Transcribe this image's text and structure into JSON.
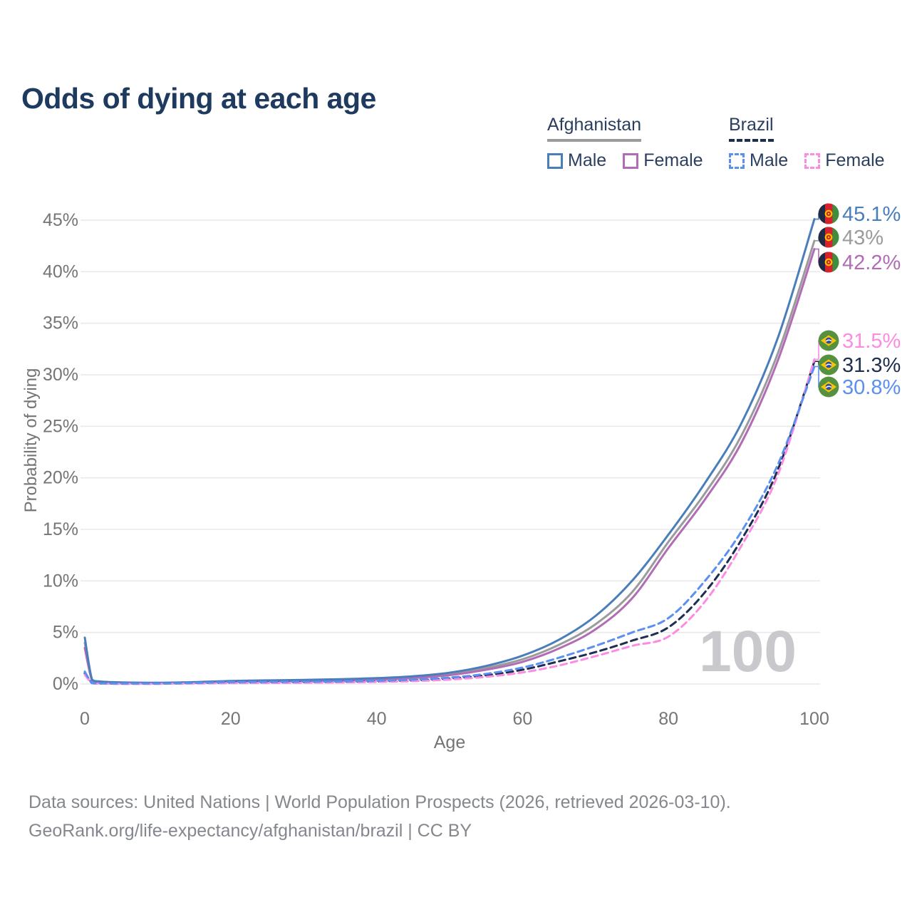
{
  "title": "Odds of dying at each age",
  "legend": {
    "groups": [
      {
        "label": "Afghanistan",
        "line_style": "solid",
        "underline_color": "#9b9b9b",
        "items": [
          {
            "label": "Male",
            "color": "#4a7ebb"
          },
          {
            "label": "Female",
            "color": "#b16cb5"
          }
        ]
      },
      {
        "label": "Brazil",
        "line_style": "dashed",
        "underline_color": "#1d2e4e",
        "items": [
          {
            "label": "Male",
            "color": "#5b8ff0"
          },
          {
            "label": "Female",
            "color": "#fc8ce2"
          }
        ]
      }
    ]
  },
  "watermark": "100",
  "chart_data": {
    "type": "line",
    "title": "Odds of dying at each age",
    "xlabel": "Age",
    "ylabel": "Probability of dying",
    "xlim": [
      0,
      100
    ],
    "ylim_percent": [
      0,
      47
    ],
    "x_ticks": [
      0,
      20,
      40,
      60,
      80,
      100
    ],
    "y_ticks_percent": [
      0,
      5,
      10,
      15,
      20,
      25,
      30,
      35,
      40,
      45
    ],
    "grid": "horizontal",
    "legend_position": "top-right",
    "x": [
      0,
      1,
      2,
      5,
      10,
      15,
      20,
      25,
      30,
      35,
      40,
      45,
      50,
      55,
      60,
      65,
      70,
      75,
      80,
      85,
      90,
      95,
      100
    ],
    "series": [
      {
        "name": "Afghanistan Both sexes",
        "country": "Afghanistan",
        "sex": "Both",
        "flag": "afghanistan",
        "color": "#9b9b9b",
        "dash": "solid",
        "end_label": "43%",
        "values": [
          4.0,
          0.38,
          0.22,
          0.13,
          0.1,
          0.15,
          0.25,
          0.3,
          0.34,
          0.4,
          0.5,
          0.66,
          0.97,
          1.55,
          2.4,
          3.8,
          5.8,
          8.9,
          13.8,
          18.5,
          24.1,
          32.1,
          43.0
        ]
      },
      {
        "name": "Afghanistan Female",
        "country": "Afghanistan",
        "sex": "Female",
        "flag": "afghanistan",
        "color": "#b16cb5",
        "dash": "solid",
        "end_label": "42.2%",
        "values": [
          3.5,
          0.34,
          0.2,
          0.12,
          0.09,
          0.13,
          0.21,
          0.25,
          0.29,
          0.34,
          0.43,
          0.58,
          0.86,
          1.38,
          2.15,
          3.45,
          5.3,
          8.3,
          13.2,
          17.9,
          23.4,
          31.4,
          42.2
        ]
      },
      {
        "name": "Afghanistan Male",
        "country": "Afghanistan",
        "sex": "Male",
        "flag": "afghanistan",
        "color": "#4a7ebb",
        "dash": "solid",
        "end_label": "45.1%",
        "values": [
          4.5,
          0.42,
          0.25,
          0.15,
          0.12,
          0.18,
          0.3,
          0.35,
          0.4,
          0.47,
          0.57,
          0.75,
          1.1,
          1.75,
          2.75,
          4.3,
          6.6,
          10.0,
          14.5,
          19.5,
          25.3,
          33.6,
          45.1
        ]
      },
      {
        "name": "Brazil Both sexes",
        "country": "Brazil",
        "sex": "Both",
        "flag": "brazil",
        "color": "#1d2e4e",
        "dash": "dashed",
        "end_label": "31.3%",
        "values": [
          1.05,
          0.08,
          0.05,
          0.03,
          0.03,
          0.08,
          0.13,
          0.15,
          0.17,
          0.2,
          0.25,
          0.35,
          0.53,
          0.85,
          1.38,
          2.2,
          3.1,
          4.2,
          5.5,
          8.9,
          14.0,
          20.8,
          31.3
        ]
      },
      {
        "name": "Brazil Female",
        "country": "Brazil",
        "sex": "Female",
        "flag": "brazil",
        "color": "#fc8ce2",
        "dash": "dashed",
        "end_label": "31.5%",
        "values": [
          0.9,
          0.07,
          0.04,
          0.02,
          0.02,
          0.05,
          0.08,
          0.1,
          0.12,
          0.15,
          0.2,
          0.28,
          0.43,
          0.7,
          1.12,
          1.8,
          2.7,
          3.7,
          4.6,
          8.0,
          13.4,
          20.3,
          31.5
        ]
      },
      {
        "name": "Brazil Male",
        "country": "Brazil",
        "sex": "Male",
        "flag": "brazil",
        "color": "#5b8ff0",
        "dash": "dashed",
        "end_label": "30.8%",
        "values": [
          1.2,
          0.09,
          0.06,
          0.04,
          0.04,
          0.1,
          0.18,
          0.2,
          0.22,
          0.25,
          0.31,
          0.42,
          0.62,
          0.98,
          1.6,
          2.55,
          3.7,
          5.0,
          6.4,
          10.0,
          14.8,
          21.3,
          30.8
        ]
      }
    ]
  },
  "footer": {
    "line1": "Data sources: United Nations | World Population Prospects (2026, retrieved 2026-03-10).",
    "line2": "GeoRank.org/life-expectancy/afghanistan/brazil | CC BY"
  },
  "colors": {
    "title": "#1f3a5f",
    "axis_text": "#757575",
    "gridline": "#e9e9eb",
    "watermark": "#c8c8cd",
    "footer_text": "#84878d"
  }
}
